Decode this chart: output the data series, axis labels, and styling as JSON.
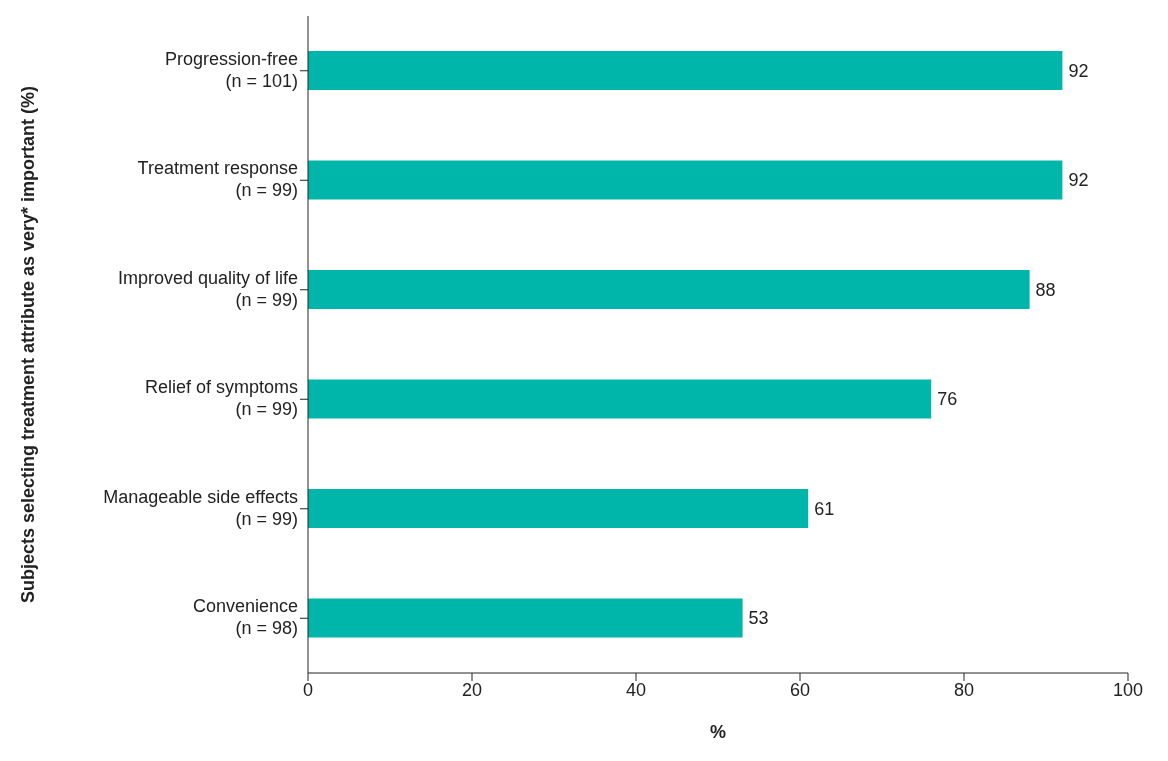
{
  "chart_data": {
    "type": "bar",
    "orientation": "horizontal",
    "ylabel": "Subjects selecting treatment attribute as very* important (%)",
    "xlabel": "%",
    "categories": [
      "Progression-free\n(n = 101)",
      "Treatment response\n(n = 99)",
      "Improved quality of life\n(n = 99)",
      "Relief of symptoms\n(n = 99)",
      "Manageable side effects\n(n = 99)",
      "Convenience\n(n = 98)"
    ],
    "values": [
      92,
      92,
      88,
      76,
      61,
      53
    ],
    "color": "#00b5aa",
    "xlim": [
      0,
      100
    ],
    "xticks": [
      0,
      20,
      40,
      60,
      80,
      100
    ],
    "grid": false,
    "legend": false,
    "data_labels": true
  }
}
